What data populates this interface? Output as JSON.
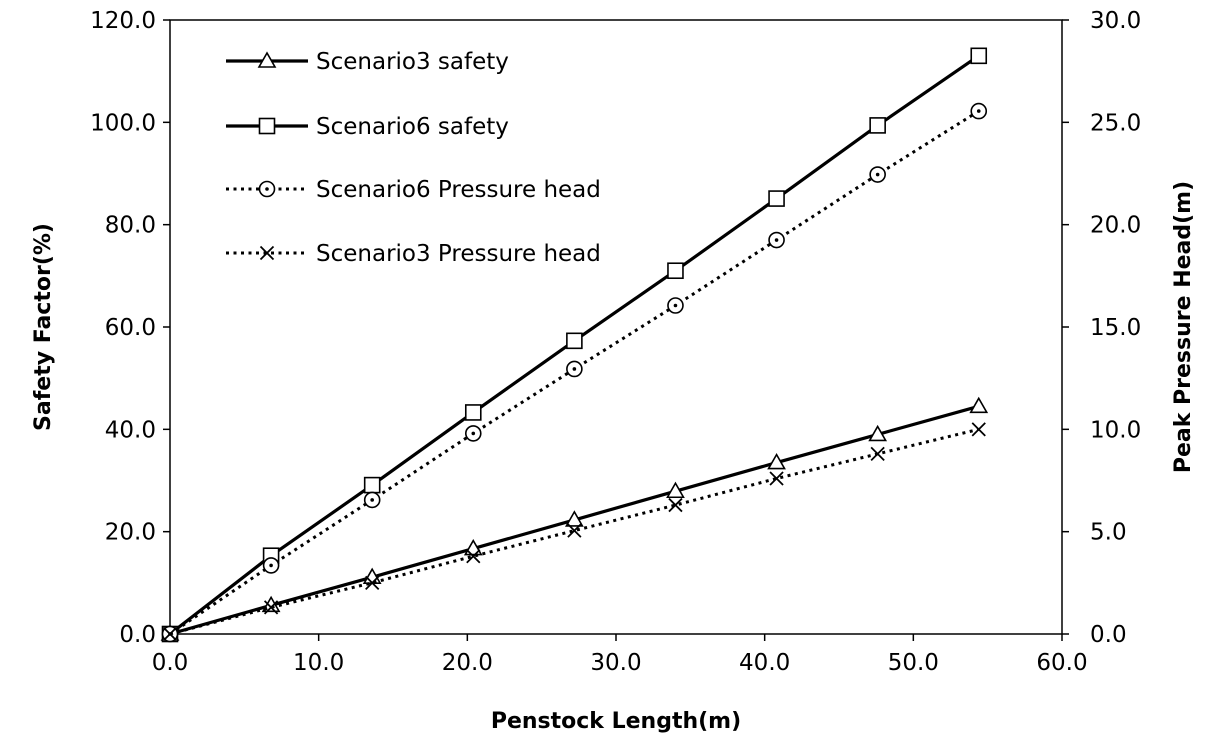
{
  "chart_data": {
    "type": "line",
    "title": "",
    "xlabel": "Penstock Length(m)",
    "ylabel": "Safety Factor(%)",
    "y2label": "Peak Pressure Head(m)",
    "xlim": [
      0,
      60
    ],
    "ylim": [
      0,
      120
    ],
    "y2lim": [
      0,
      30
    ],
    "x_ticks": [
      "0.0",
      "10.0",
      "20.0",
      "30.0",
      "40.0",
      "50.0",
      "60.0"
    ],
    "y_ticks": [
      "0.0",
      "20.0",
      "40.0",
      "60.0",
      "80.0",
      "100.0",
      "120.0"
    ],
    "y2_ticks": [
      "0.0",
      "5.0",
      "10.0",
      "15.0",
      "20.0",
      "25.0",
      "30.0"
    ],
    "grid": false,
    "legend_position": "top-left",
    "series": [
      {
        "name": "Scenario3 safety",
        "axis": "left",
        "style": "solid",
        "marker": "triangle",
        "x": [
          0,
          6.8,
          13.6,
          20.4,
          27.2,
          34.0,
          40.8,
          47.6,
          54.4
        ],
        "y": [
          0,
          5.6,
          11.1,
          16.7,
          22.3,
          27.9,
          33.5,
          39.0,
          44.5
        ]
      },
      {
        "name": "Scenario6 safety",
        "axis": "left",
        "style": "solid",
        "marker": "square",
        "x": [
          0,
          6.8,
          13.6,
          20.4,
          27.2,
          34.0,
          40.8,
          47.6,
          54.4
        ],
        "y": [
          0,
          15.3,
          29.1,
          43.3,
          57.3,
          71.0,
          85.1,
          99.4,
          113.0
        ]
      },
      {
        "name": "Scenario6 Pressure head",
        "axis": "right",
        "style": "dotted",
        "marker": "circle",
        "x": [
          0,
          6.8,
          13.6,
          20.4,
          27.2,
          34.0,
          40.8,
          47.6,
          54.4
        ],
        "y": [
          0,
          3.35,
          6.55,
          9.8,
          12.95,
          16.05,
          19.25,
          22.45,
          25.55
        ]
      },
      {
        "name": "Scenario3 Pressure head",
        "axis": "right",
        "style": "dotted",
        "marker": "cross",
        "x": [
          0,
          6.8,
          13.6,
          20.4,
          27.2,
          34.0,
          40.8,
          47.6,
          54.4
        ],
        "y": [
          0,
          1.3,
          2.5,
          3.8,
          5.05,
          6.3,
          7.6,
          8.8,
          10.0
        ]
      }
    ]
  }
}
